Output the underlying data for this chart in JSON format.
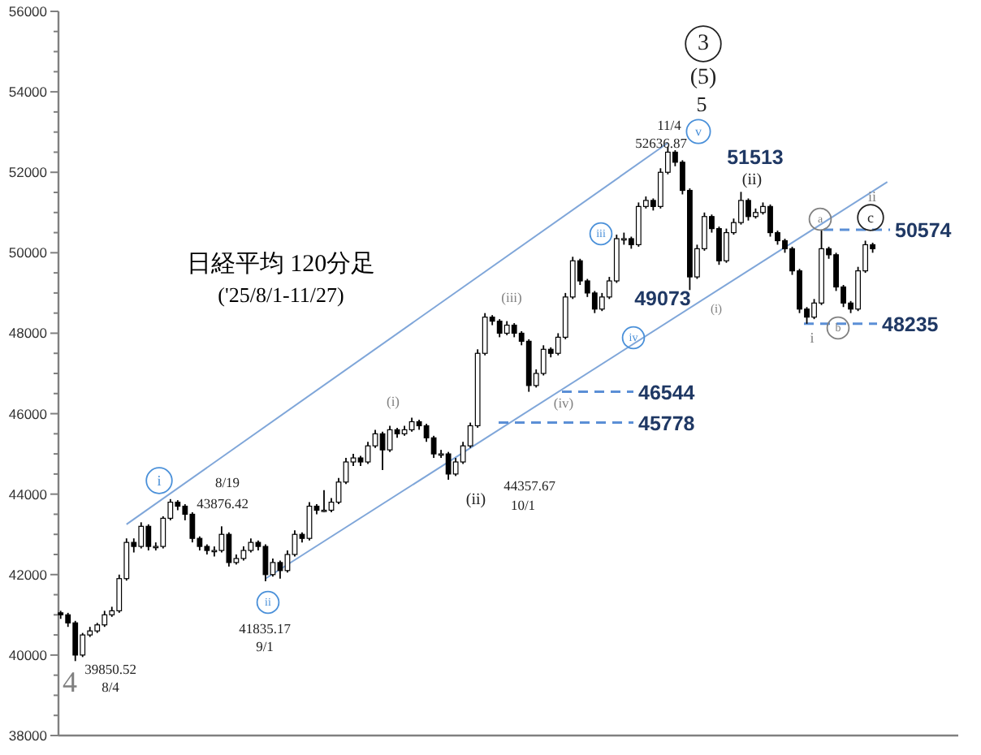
{
  "chart_data": {
    "type": "candlestick",
    "title": "日経平均 120分足",
    "subtitle": "('25/8/1-11/27)",
    "categories": [
      null,
      null,
      null,
      null,
      null,
      null,
      null,
      null,
      null,
      null,
      null,
      null,
      null,
      null,
      null,
      null,
      null,
      null,
      null,
      null,
      null,
      null,
      null,
      null,
      null,
      null,
      null,
      null,
      null,
      null,
      null,
      null,
      null,
      null,
      null,
      null,
      null,
      null,
      null,
      null,
      null,
      null,
      null,
      null,
      null,
      null,
      null,
      null,
      null,
      null,
      null,
      null,
      null,
      null,
      null,
      null,
      null,
      null,
      null,
      null,
      null,
      null,
      null,
      null,
      null,
      null,
      null,
      null,
      null,
      null,
      null,
      null,
      null,
      null,
      null,
      null,
      null,
      null,
      null,
      null,
      null,
      null,
      null,
      null,
      null,
      null,
      null,
      null,
      null,
      null,
      null,
      null,
      null,
      null,
      null,
      null,
      null,
      null,
      null,
      null,
      null,
      null,
      null,
      null,
      null,
      null,
      null,
      null,
      null,
      null,
      null,
      null,
      null,
      null
    ],
    "color": "#000000",
    "ohlc": [
      [
        41050,
        41100,
        40900,
        41000
      ],
      [
        41000,
        41050,
        40700,
        40800
      ],
      [
        40800,
        40850,
        39850.52,
        40000
      ],
      [
        40000,
        40550,
        39950,
        40500
      ],
      [
        40500,
        40700,
        40450,
        40600
      ],
      [
        40600,
        40800,
        40550,
        40750
      ],
      [
        40750,
        41100,
        40700,
        41000
      ],
      [
        41000,
        41200,
        40950,
        41100
      ],
      [
        41100,
        42000,
        41050,
        41900
      ],
      [
        41900,
        42900,
        41850,
        42800
      ],
      [
        42800,
        42900,
        42550,
        42700
      ],
      [
        42700,
        43300,
        42650,
        43200
      ],
      [
        43200,
        43250,
        42600,
        42700
      ],
      [
        42700,
        42800,
        42600,
        42700
      ],
      [
        42700,
        43450,
        42650,
        43400
      ],
      [
        43400,
        43876.42,
        43350,
        43800
      ],
      [
        43800,
        43850,
        43600,
        43700
      ],
      [
        43700,
        43750,
        43350,
        43500
      ],
      [
        43500,
        43550,
        42800,
        42900
      ],
      [
        42900,
        42950,
        42600,
        42700
      ],
      [
        42700,
        42750,
        42500,
        42600
      ],
      [
        42600,
        42700,
        42450,
        42600
      ],
      [
        42600,
        43200,
        42550,
        43000
      ],
      [
        43000,
        43050,
        42200,
        42300
      ],
      [
        42300,
        42500,
        42250,
        42400
      ],
      [
        42400,
        42700,
        42350,
        42600
      ],
      [
        42600,
        42900,
        42550,
        42800
      ],
      [
        42800,
        42850,
        42600,
        42700
      ],
      [
        42700,
        42750,
        41835.17,
        42000
      ],
      [
        42000,
        42400,
        41950,
        42300
      ],
      [
        42300,
        42350,
        41900,
        42100
      ],
      [
        42100,
        42600,
        42050,
        42500
      ],
      [
        42500,
        43100,
        42450,
        43000
      ],
      [
        43000,
        43050,
        42800,
        42900
      ],
      [
        42900,
        43800,
        42850,
        43700
      ],
      [
        43700,
        43750,
        43500,
        43600
      ],
      [
        43600,
        44100,
        43550,
        43600
      ],
      [
        43600,
        43900,
        43550,
        43800
      ],
      [
        43800,
        44400,
        43750,
        44300
      ],
      [
        44300,
        44900,
        44250,
        44800
      ],
      [
        44800,
        45000,
        44700,
        44900
      ],
      [
        44900,
        44950,
        44700,
        44800
      ],
      [
        44800,
        45300,
        44750,
        45200
      ],
      [
        45200,
        45600,
        45150,
        45500
      ],
      [
        45500,
        45550,
        44600,
        45100
      ],
      [
        45100,
        45700,
        45050,
        45600
      ],
      [
        45600,
        45650,
        45400,
        45500
      ],
      [
        45500,
        45700,
        45450,
        45600
      ],
      [
        45600,
        45900,
        45550,
        45800
      ],
      [
        45800,
        45850,
        45600,
        45700
      ],
      [
        45700,
        45750,
        45300,
        45400
      ],
      [
        45400,
        45450,
        44900,
        45000
      ],
      [
        45000,
        45100,
        44900,
        45000
      ],
      [
        45000,
        45050,
        44357.67,
        44500
      ],
      [
        44500,
        44900,
        44450,
        44800
      ],
      [
        44800,
        45300,
        44750,
        45200
      ],
      [
        45200,
        45778,
        45150,
        45700
      ],
      [
        45700,
        47600,
        45650,
        47500
      ],
      [
        47500,
        48500,
        47450,
        48400
      ],
      [
        48400,
        48450,
        48200,
        48300
      ],
      [
        48300,
        48350,
        47900,
        48000
      ],
      [
        48000,
        48300,
        47950,
        48200
      ],
      [
        48200,
        48250,
        47900,
        48000
      ],
      [
        48000,
        48050,
        47700,
        47800
      ],
      [
        47800,
        47850,
        46544,
        46700
      ],
      [
        46700,
        47100,
        46650,
        47000
      ],
      [
        47000,
        47700,
        46950,
        47600
      ],
      [
        47600,
        47650,
        47400,
        47500
      ],
      [
        47500,
        48000,
        47450,
        47900
      ],
      [
        47900,
        49000,
        47850,
        48900
      ],
      [
        48900,
        49900,
        48850,
        49800
      ],
      [
        49800,
        49850,
        49200,
        49300
      ],
      [
        49300,
        49350,
        48900,
        49000
      ],
      [
        49000,
        49050,
        48500,
        48600
      ],
      [
        48600,
        49000,
        48550,
        48900
      ],
      [
        48900,
        49400,
        48850,
        49300
      ],
      [
        49300,
        50450,
        49250,
        50350
      ],
      [
        50350,
        50500,
        50200,
        50350
      ],
      [
        50350,
        50400,
        50100,
        50200
      ],
      [
        50200,
        51250,
        50150,
        51150
      ],
      [
        51150,
        51400,
        51100,
        51300
      ],
      [
        51300,
        51350,
        51050,
        51150
      ],
      [
        51150,
        52100,
        51100,
        52000
      ],
      [
        52000,
        52636.87,
        51950,
        52500
      ],
      [
        52500,
        52550,
        52150,
        52250
      ],
      [
        52250,
        52300,
        51450,
        51550
      ],
      [
        51550,
        51600,
        49073,
        49400
      ],
      [
        49400,
        50200,
        49350,
        50100
      ],
      [
        50100,
        51000,
        50050,
        50900
      ],
      [
        50900,
        50950,
        50500,
        50600
      ],
      [
        50600,
        50650,
        49700,
        49800
      ],
      [
        49800,
        50600,
        49750,
        50500
      ],
      [
        50500,
        50850,
        50450,
        50750
      ],
      [
        50750,
        51513,
        50700,
        51300
      ],
      [
        51300,
        51350,
        50800,
        50900
      ],
      [
        50900,
        51100,
        50850,
        51000
      ],
      [
        51000,
        51250,
        50950,
        51150
      ],
      [
        51150,
        51200,
        50400,
        50500
      ],
      [
        50500,
        50550,
        50200,
        50300
      ],
      [
        50300,
        50350,
        50000,
        50100
      ],
      [
        50100,
        50150,
        49450,
        49550
      ],
      [
        49550,
        49600,
        48500,
        48600
      ],
      [
        48600,
        48650,
        48235,
        48400
      ],
      [
        48400,
        48850,
        48350,
        48750
      ],
      [
        48750,
        50574,
        48700,
        50100
      ],
      [
        50100,
        50150,
        49850,
        49950
      ],
      [
        49950,
        50000,
        49050,
        49150
      ],
      [
        49150,
        49200,
        48650,
        48750
      ],
      [
        48750,
        48800,
        48500,
        48600
      ],
      [
        48600,
        49650,
        48550,
        49550
      ],
      [
        49550,
        50300,
        49500,
        50200
      ],
      [
        50200,
        50250,
        50000,
        50100
      ],
      null,
      null
    ],
    "series": [
      {
        "type": "line",
        "color": "#7fa6d9",
        "values": [
          null,
          null,
          null,
          null,
          null,
          null,
          null,
          null,
          null,
          43250,
          null,
          null,
          null,
          null,
          null,
          null,
          null,
          null,
          null,
          null,
          null,
          null,
          null,
          null,
          null,
          null,
          null,
          null,
          null,
          null,
          null,
          null,
          null,
          null,
          null,
          null,
          null,
          null,
          null,
          null,
          null,
          null,
          null,
          null,
          null,
          null,
          null,
          null,
          null,
          null,
          null,
          null,
          null,
          null,
          null,
          null,
          null,
          null,
          null,
          null,
          null,
          null,
          null,
          null,
          null,
          null,
          null,
          null,
          null,
          null,
          null,
          null,
          null,
          null,
          null,
          null,
          null,
          null,
          null,
          null,
          null,
          null,
          null,
          52730,
          null,
          null,
          null,
          null,
          null,
          null,
          null,
          null,
          null,
          null,
          null,
          null,
          null,
          null,
          null,
          null,
          null,
          null,
          null,
          null,
          null,
          null,
          null,
          null,
          null,
          null,
          null,
          null,
          null,
          null
        ]
      },
      {
        "type": "line",
        "color": "#7fa6d9",
        "values": [
          null,
          null,
          null,
          null,
          null,
          null,
          null,
          null,
          null,
          null,
          null,
          null,
          null,
          null,
          null,
          null,
          null,
          null,
          null,
          null,
          null,
          null,
          null,
          null,
          null,
          null,
          null,
          null,
          41900,
          null,
          null,
          null,
          null,
          null,
          null,
          null,
          null,
          null,
          null,
          null,
          null,
          null,
          null,
          null,
          null,
          null,
          null,
          null,
          null,
          null,
          null,
          null,
          null,
          null,
          null,
          null,
          null,
          null,
          null,
          null,
          null,
          null,
          null,
          null,
          null,
          null,
          null,
          null,
          null,
          null,
          null,
          null,
          null,
          null,
          null,
          null,
          null,
          null,
          null,
          null,
          null,
          null,
          null,
          null,
          null,
          null,
          null,
          null,
          null,
          null,
          null,
          null,
          null,
          null,
          null,
          null,
          null,
          null,
          null,
          null,
          null,
          null,
          null,
          null,
          null,
          null,
          null,
          null,
          null,
          null,
          null,
          null,
          null,
          51760
        ]
      }
    ],
    "ylim": [
      38000,
      56000
    ],
    "yticks": [
      38000,
      {
        "value": 38500,
        "label": null
      },
      {
        "value": 39000,
        "label": null
      },
      {
        "value": 39500,
        "label": null
      },
      40000,
      {
        "value": 40500,
        "label": null
      },
      {
        "value": 41000,
        "label": null
      },
      {
        "value": 41500,
        "label": null
      },
      42000,
      {
        "value": 42500,
        "label": null
      },
      {
        "value": 43000,
        "label": null
      },
      {
        "value": 43500,
        "label": null
      },
      44000,
      {
        "value": 44500,
        "label": null
      },
      {
        "value": 45000,
        "label": null
      },
      {
        "value": 45500,
        "label": null
      },
      46000,
      {
        "value": 46500,
        "label": null
      },
      {
        "value": 47000,
        "label": null
      },
      {
        "value": 47500,
        "label": null
      },
      48000,
      {
        "value": 48500,
        "label": null
      },
      {
        "value": 49000,
        "label": null
      },
      {
        "value": 49500,
        "label": null
      },
      50000,
      {
        "value": 50500,
        "label": null
      },
      {
        "value": 51000,
        "label": null
      },
      {
        "value": 51500,
        "label": null
      },
      52000,
      {
        "value": 52500,
        "label": null
      },
      {
        "value": 53000,
        "label": null
      },
      {
        "value": 53500,
        "label": null
      },
      54000,
      {
        "value": 54500,
        "label": null
      },
      {
        "value": 55000,
        "label": null
      },
      {
        "value": 55500,
        "label": null
      },
      56000
    ],
    "tick_labels": "y",
    "ref_lines": [
      {
        "axis": "y",
        "value": 50574,
        "label": "50574",
        "color": "#5b8fd6",
        "line_style": "dashed"
      },
      {
        "axis": "y",
        "value": 48235,
        "label": "48235",
        "color": "#5b8fd6",
        "line_style": "dashed"
      },
      {
        "axis": "y",
        "value": 46544,
        "label": "46544",
        "color": "#5b8fd6",
        "line_style": "dashed"
      },
      {
        "axis": "y",
        "value": 45778,
        "label": "45778",
        "color": "#5b8fd6",
        "line_style": "dashed"
      }
    ],
    "annotations": [
      "3",
      "(5)",
      "5",
      "v",
      "11/4",
      "52636.87",
      "51513",
      "(ii)",
      "49073",
      "(i)",
      "a",
      "b",
      "c",
      "ii",
      "i",
      "iii",
      "iv",
      "(iii)",
      "(iv)",
      "(i)",
      "(ii)",
      "44357.67",
      "10/1",
      "i",
      "8/19",
      "43876.42",
      "ii",
      "41835.17",
      "9/1",
      "39850.52",
      "8/4",
      "4"
    ]
  }
}
